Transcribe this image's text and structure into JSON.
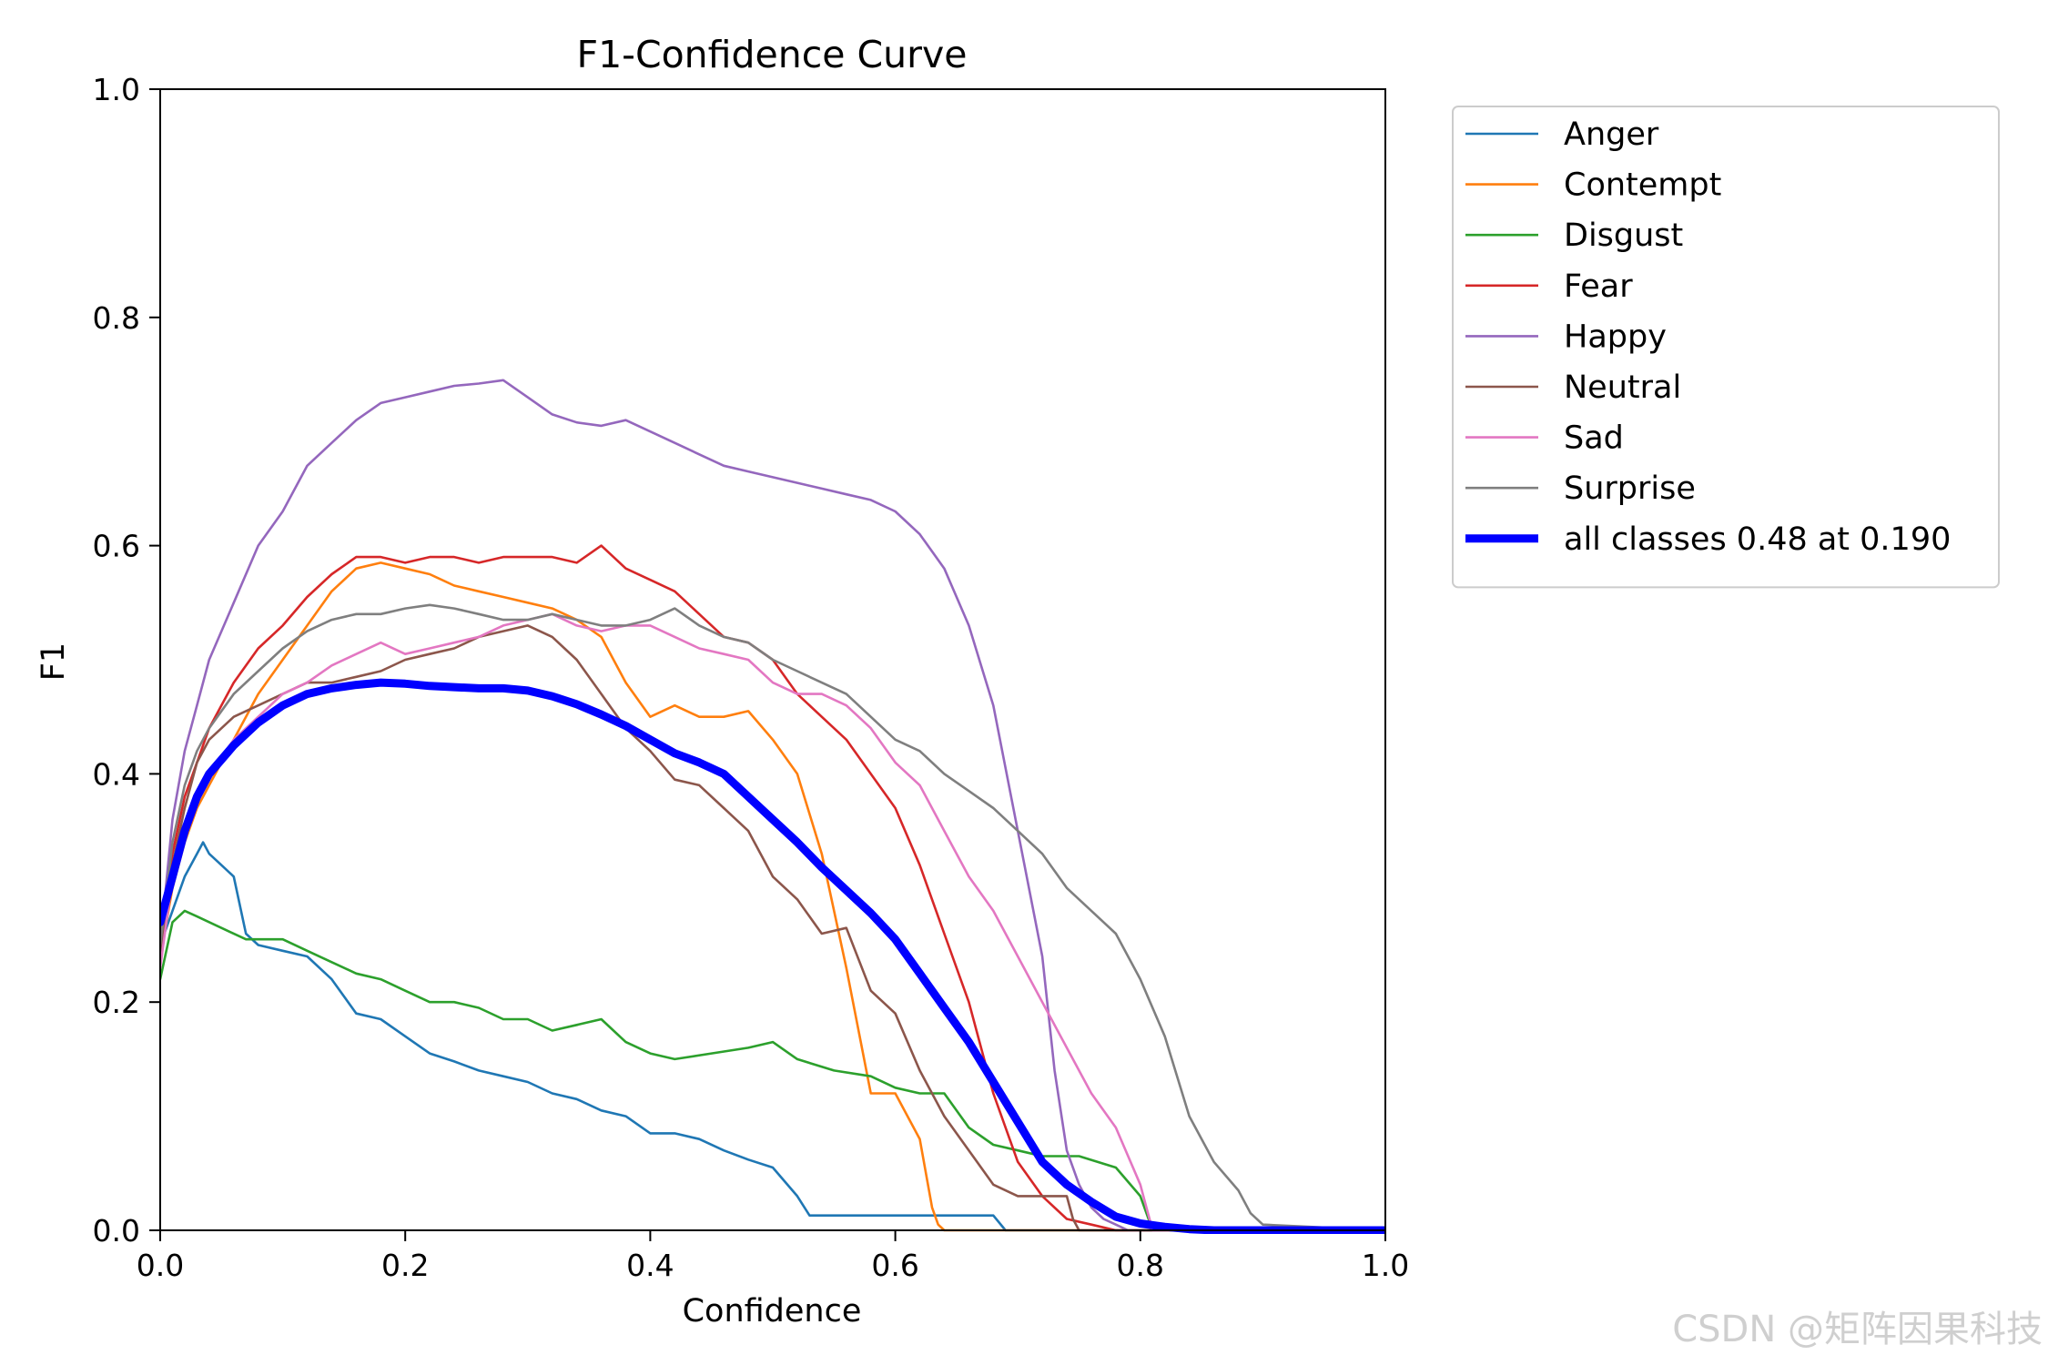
{
  "chart_data": {
    "type": "line",
    "title": "F1-Confidence Curve",
    "xlabel": "Confidence",
    "ylabel": "F1",
    "xlim": [
      0,
      1
    ],
    "ylim": [
      0,
      1
    ],
    "xticks": [
      "0.0",
      "0.2",
      "0.4",
      "0.6",
      "0.8",
      "1.0"
    ],
    "yticks": [
      "0.0",
      "0.2",
      "0.4",
      "0.6",
      "0.8",
      "1.0"
    ],
    "grid": false,
    "legend": "outside upper right",
    "series": [
      {
        "name": "Anger",
        "color": "#1f77b4",
        "x": [
          0,
          0.01,
          0.02,
          0.03,
          0.035,
          0.04,
          0.05,
          0.06,
          0.07,
          0.08,
          0.1,
          0.12,
          0.14,
          0.16,
          0.18,
          0.2,
          0.22,
          0.24,
          0.26,
          0.28,
          0.3,
          0.32,
          0.34,
          0.36,
          0.38,
          0.4,
          0.42,
          0.44,
          0.46,
          0.48,
          0.5,
          0.52,
          0.53,
          0.55,
          0.6,
          0.68,
          0.69,
          1.0
        ],
        "y": [
          0.25,
          0.28,
          0.31,
          0.33,
          0.34,
          0.33,
          0.32,
          0.31,
          0.26,
          0.25,
          0.245,
          0.24,
          0.22,
          0.19,
          0.185,
          0.17,
          0.155,
          0.148,
          0.14,
          0.135,
          0.13,
          0.12,
          0.115,
          0.105,
          0.1,
          0.085,
          0.085,
          0.08,
          0.07,
          0.062,
          0.055,
          0.03,
          0.013,
          0.013,
          0.013,
          0.013,
          0.0,
          0.0
        ]
      },
      {
        "name": "Contempt",
        "color": "#ff7f0e",
        "x": [
          0,
          0.01,
          0.02,
          0.03,
          0.04,
          0.05,
          0.06,
          0.08,
          0.1,
          0.12,
          0.14,
          0.16,
          0.18,
          0.2,
          0.22,
          0.24,
          0.26,
          0.28,
          0.3,
          0.32,
          0.34,
          0.36,
          0.38,
          0.4,
          0.42,
          0.44,
          0.46,
          0.48,
          0.5,
          0.52,
          0.54,
          0.56,
          0.58,
          0.6,
          0.62,
          0.63,
          0.635,
          0.64,
          1.0
        ],
        "y": [
          0.24,
          0.3,
          0.34,
          0.37,
          0.39,
          0.41,
          0.43,
          0.47,
          0.5,
          0.53,
          0.56,
          0.58,
          0.585,
          0.58,
          0.575,
          0.565,
          0.56,
          0.555,
          0.55,
          0.545,
          0.535,
          0.52,
          0.48,
          0.45,
          0.46,
          0.45,
          0.45,
          0.455,
          0.43,
          0.4,
          0.33,
          0.23,
          0.12,
          0.12,
          0.08,
          0.02,
          0.005,
          0.0,
          0.0
        ]
      },
      {
        "name": "Disgust",
        "color": "#2ca02c",
        "x": [
          0,
          0.01,
          0.02,
          0.03,
          0.05,
          0.07,
          0.1,
          0.12,
          0.14,
          0.16,
          0.18,
          0.2,
          0.22,
          0.24,
          0.26,
          0.28,
          0.3,
          0.32,
          0.34,
          0.36,
          0.38,
          0.4,
          0.42,
          0.45,
          0.48,
          0.5,
          0.52,
          0.55,
          0.58,
          0.6,
          0.62,
          0.64,
          0.66,
          0.68,
          0.7,
          0.72,
          0.75,
          0.78,
          0.8,
          0.81,
          1.0
        ],
        "y": [
          0.22,
          0.27,
          0.28,
          0.275,
          0.265,
          0.255,
          0.255,
          0.245,
          0.235,
          0.225,
          0.22,
          0.21,
          0.2,
          0.2,
          0.195,
          0.185,
          0.185,
          0.175,
          0.18,
          0.185,
          0.165,
          0.155,
          0.15,
          0.155,
          0.16,
          0.165,
          0.15,
          0.14,
          0.135,
          0.125,
          0.12,
          0.12,
          0.09,
          0.075,
          0.07,
          0.065,
          0.065,
          0.055,
          0.03,
          0.0,
          0.0
        ]
      },
      {
        "name": "Fear",
        "color": "#d62728",
        "x": [
          0,
          0.01,
          0.02,
          0.03,
          0.04,
          0.06,
          0.08,
          0.1,
          0.12,
          0.14,
          0.16,
          0.18,
          0.2,
          0.22,
          0.24,
          0.26,
          0.28,
          0.3,
          0.32,
          0.34,
          0.36,
          0.38,
          0.4,
          0.42,
          0.44,
          0.46,
          0.48,
          0.5,
          0.52,
          0.54,
          0.56,
          0.58,
          0.6,
          0.62,
          0.64,
          0.66,
          0.68,
          0.7,
          0.72,
          0.74,
          0.76,
          0.78,
          0.8,
          0.82,
          0.83,
          1.0
        ],
        "y": [
          0.25,
          0.33,
          0.38,
          0.41,
          0.44,
          0.48,
          0.51,
          0.53,
          0.555,
          0.575,
          0.59,
          0.59,
          0.585,
          0.59,
          0.59,
          0.585,
          0.59,
          0.59,
          0.59,
          0.585,
          0.6,
          0.58,
          0.57,
          0.56,
          0.54,
          0.52,
          0.515,
          0.5,
          0.47,
          0.45,
          0.43,
          0.4,
          0.37,
          0.32,
          0.26,
          0.2,
          0.12,
          0.06,
          0.03,
          0.01,
          0.005,
          0.0,
          0.0,
          0.0,
          0.0,
          0.0
        ]
      },
      {
        "name": "Happy",
        "color": "#9467bd",
        "x": [
          0,
          0.01,
          0.02,
          0.03,
          0.04,
          0.06,
          0.08,
          0.1,
          0.12,
          0.14,
          0.16,
          0.18,
          0.2,
          0.22,
          0.24,
          0.26,
          0.28,
          0.3,
          0.32,
          0.34,
          0.36,
          0.38,
          0.4,
          0.42,
          0.44,
          0.46,
          0.48,
          0.5,
          0.52,
          0.54,
          0.56,
          0.58,
          0.6,
          0.62,
          0.64,
          0.66,
          0.68,
          0.7,
          0.72,
          0.73,
          0.74,
          0.75,
          0.76,
          0.77,
          0.78,
          0.79,
          0.8,
          1.0
        ],
        "y": [
          0.25,
          0.36,
          0.42,
          0.46,
          0.5,
          0.55,
          0.6,
          0.63,
          0.67,
          0.69,
          0.71,
          0.725,
          0.73,
          0.735,
          0.74,
          0.742,
          0.745,
          0.73,
          0.715,
          0.708,
          0.705,
          0.71,
          0.7,
          0.69,
          0.68,
          0.67,
          0.665,
          0.66,
          0.655,
          0.65,
          0.645,
          0.64,
          0.63,
          0.61,
          0.58,
          0.53,
          0.46,
          0.35,
          0.24,
          0.14,
          0.07,
          0.04,
          0.02,
          0.01,
          0.005,
          0.0,
          0.0,
          0.0
        ]
      },
      {
        "name": "Neutral",
        "color": "#8c564b",
        "x": [
          0,
          0.01,
          0.02,
          0.03,
          0.04,
          0.06,
          0.08,
          0.1,
          0.12,
          0.14,
          0.16,
          0.18,
          0.2,
          0.22,
          0.24,
          0.26,
          0.28,
          0.3,
          0.32,
          0.34,
          0.36,
          0.38,
          0.4,
          0.42,
          0.44,
          0.46,
          0.48,
          0.5,
          0.52,
          0.54,
          0.56,
          0.58,
          0.6,
          0.62,
          0.64,
          0.66,
          0.68,
          0.7,
          0.72,
          0.74,
          0.745,
          0.75,
          1.0
        ],
        "y": [
          0.24,
          0.32,
          0.37,
          0.41,
          0.43,
          0.45,
          0.46,
          0.47,
          0.48,
          0.48,
          0.485,
          0.49,
          0.5,
          0.505,
          0.51,
          0.52,
          0.525,
          0.53,
          0.52,
          0.5,
          0.47,
          0.44,
          0.42,
          0.395,
          0.39,
          0.37,
          0.35,
          0.31,
          0.29,
          0.26,
          0.265,
          0.21,
          0.19,
          0.14,
          0.1,
          0.07,
          0.04,
          0.03,
          0.03,
          0.03,
          0.01,
          0.0,
          0.0
        ]
      },
      {
        "name": "Sad",
        "color": "#e377c2",
        "x": [
          0,
          0.01,
          0.02,
          0.03,
          0.04,
          0.06,
          0.08,
          0.1,
          0.12,
          0.14,
          0.16,
          0.18,
          0.2,
          0.22,
          0.24,
          0.26,
          0.28,
          0.3,
          0.32,
          0.34,
          0.36,
          0.38,
          0.4,
          0.42,
          0.44,
          0.46,
          0.48,
          0.5,
          0.52,
          0.54,
          0.56,
          0.58,
          0.6,
          0.62,
          0.64,
          0.66,
          0.68,
          0.7,
          0.72,
          0.74,
          0.76,
          0.78,
          0.8,
          0.805,
          0.81,
          1.0
        ],
        "y": [
          0.23,
          0.31,
          0.35,
          0.38,
          0.4,
          0.43,
          0.45,
          0.47,
          0.48,
          0.495,
          0.505,
          0.515,
          0.505,
          0.51,
          0.515,
          0.52,
          0.53,
          0.535,
          0.54,
          0.53,
          0.525,
          0.53,
          0.53,
          0.52,
          0.51,
          0.505,
          0.5,
          0.48,
          0.47,
          0.47,
          0.46,
          0.44,
          0.41,
          0.39,
          0.35,
          0.31,
          0.28,
          0.24,
          0.2,
          0.16,
          0.12,
          0.09,
          0.04,
          0.02,
          0.0,
          0.0
        ]
      },
      {
        "name": "Surprise",
        "color": "#7f7f7f",
        "x": [
          0,
          0.01,
          0.02,
          0.03,
          0.04,
          0.06,
          0.08,
          0.1,
          0.12,
          0.14,
          0.16,
          0.18,
          0.2,
          0.22,
          0.24,
          0.26,
          0.28,
          0.3,
          0.32,
          0.34,
          0.36,
          0.38,
          0.4,
          0.42,
          0.44,
          0.46,
          0.48,
          0.5,
          0.52,
          0.54,
          0.56,
          0.58,
          0.6,
          0.62,
          0.64,
          0.66,
          0.68,
          0.7,
          0.72,
          0.74,
          0.76,
          0.78,
          0.8,
          0.82,
          0.84,
          0.86,
          0.88,
          0.89,
          0.9,
          1.0
        ],
        "y": [
          0.25,
          0.34,
          0.39,
          0.42,
          0.44,
          0.47,
          0.49,
          0.51,
          0.525,
          0.535,
          0.54,
          0.54,
          0.545,
          0.548,
          0.545,
          0.54,
          0.535,
          0.535,
          0.54,
          0.535,
          0.53,
          0.53,
          0.535,
          0.545,
          0.53,
          0.52,
          0.515,
          0.5,
          0.49,
          0.48,
          0.47,
          0.45,
          0.43,
          0.42,
          0.4,
          0.385,
          0.37,
          0.35,
          0.33,
          0.3,
          0.28,
          0.26,
          0.22,
          0.17,
          0.1,
          0.06,
          0.035,
          0.015,
          0.005,
          0.0
        ]
      },
      {
        "name": "all classes 0.48 at 0.190",
        "color": "#0000ff",
        "bold": true,
        "x": [
          0,
          0.01,
          0.02,
          0.03,
          0.04,
          0.06,
          0.08,
          0.1,
          0.12,
          0.14,
          0.16,
          0.18,
          0.2,
          0.22,
          0.24,
          0.26,
          0.28,
          0.3,
          0.32,
          0.34,
          0.36,
          0.38,
          0.4,
          0.42,
          0.44,
          0.46,
          0.48,
          0.5,
          0.52,
          0.54,
          0.56,
          0.58,
          0.6,
          0.62,
          0.64,
          0.66,
          0.68,
          0.7,
          0.72,
          0.74,
          0.76,
          0.78,
          0.8,
          0.82,
          0.84,
          0.86,
          0.88,
          0.9,
          0.95,
          1.0
        ],
        "y": [
          0.27,
          0.31,
          0.35,
          0.38,
          0.4,
          0.425,
          0.445,
          0.46,
          0.47,
          0.475,
          0.478,
          0.48,
          0.479,
          0.477,
          0.476,
          0.475,
          0.475,
          0.473,
          0.468,
          0.461,
          0.452,
          0.442,
          0.43,
          0.418,
          0.41,
          0.4,
          0.38,
          0.36,
          0.34,
          0.318,
          0.298,
          0.278,
          0.255,
          0.225,
          0.195,
          0.165,
          0.13,
          0.095,
          0.06,
          0.04,
          0.025,
          0.012,
          0.006,
          0.003,
          0.001,
          0.0,
          0.0,
          0.0,
          0.0,
          0.0
        ]
      }
    ]
  },
  "watermark": "CSDN @矩阵因果科技"
}
